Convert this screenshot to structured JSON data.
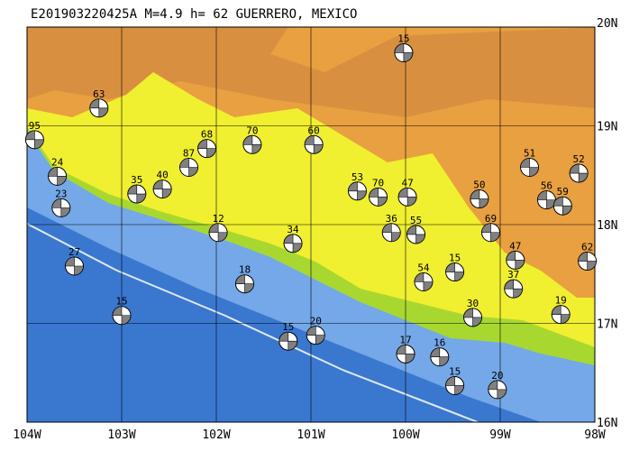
{
  "title": "E201903220425A  M=4.9  h= 62  GUERRERO, MEXICO",
  "lon_ticks": [
    {
      "value": -104,
      "label": "104W"
    },
    {
      "value": -103,
      "label": "103W"
    },
    {
      "value": -102,
      "label": "102W"
    },
    {
      "value": -101,
      "label": "101W"
    },
    {
      "value": -100,
      "label": "100W"
    },
    {
      "value": -99,
      "label": "99W"
    },
    {
      "value": -98,
      "label": "98W"
    }
  ],
  "lat_ticks": [
    {
      "value": 20,
      "label": "20N"
    },
    {
      "value": 19,
      "label": "19N"
    },
    {
      "value": 18,
      "label": "18N"
    },
    {
      "value": 17,
      "label": "17N"
    },
    {
      "value": 16,
      "label": "16N"
    }
  ],
  "lon_range": [
    -104,
    -98
  ],
  "lat_range": [
    16,
    20
  ],
  "events": [
    {
      "depth": 15,
      "lon": -100.02,
      "lat": 19.74
    },
    {
      "depth": 63,
      "lon": -103.24,
      "lat": 19.18
    },
    {
      "depth": 95,
      "lon": -103.92,
      "lat": 18.86
    },
    {
      "depth": 51,
      "lon": -98.69,
      "lat": 18.58
    },
    {
      "depth": 52,
      "lon": -98.17,
      "lat": 18.52
    },
    {
      "depth": 50,
      "lon": -99.22,
      "lat": 18.26
    },
    {
      "depth": 55,
      "lon": -99.89,
      "lat": 17.9
    },
    {
      "depth": 69,
      "lon": -99.1,
      "lat": 17.92
    },
    {
      "depth": 47,
      "lon": -98.84,
      "lat": 17.64
    },
    {
      "depth": 62,
      "lon": -98.08,
      "lat": 17.63
    },
    {
      "depth": 27,
      "lon": -103.5,
      "lat": 17.58
    },
    {
      "depth": 15,
      "lon": -103.0,
      "lat": 17.08
    },
    {
      "depth": 15,
      "lon": -101.24,
      "lat": 16.82
    },
    {
      "depth": 68,
      "lon": -102.1,
      "lat": 18.77
    },
    {
      "depth": 70,
      "lon": -101.62,
      "lat": 18.81
    },
    {
      "depth": 60,
      "lon": -100.97,
      "lat": 18.81
    },
    {
      "depth": 87,
      "lon": -102.29,
      "lat": 18.58
    },
    {
      "depth": 40,
      "lon": -102.57,
      "lat": 18.36
    },
    {
      "depth": 35,
      "lon": -102.84,
      "lat": 18.31
    },
    {
      "depth": 23,
      "lon": -103.64,
      "lat": 18.17
    },
    {
      "depth": 24,
      "lon": -103.68,
      "lat": 18.49
    },
    {
      "depth": 12,
      "lon": -101.98,
      "lat": 17.92
    },
    {
      "depth": 34,
      "lon": -101.19,
      "lat": 17.81
    },
    {
      "depth": 18,
      "lon": -101.7,
      "lat": 17.4
    },
    {
      "depth": 36,
      "lon": -100.15,
      "lat": 17.92
    },
    {
      "depth": 53,
      "lon": -100.51,
      "lat": 18.34
    },
    {
      "depth": 70,
      "lon": -100.29,
      "lat": 18.28
    },
    {
      "depth": 47,
      "lon": -99.98,
      "lat": 18.28
    },
    {
      "depth": 56,
      "lon": -98.51,
      "lat": 18.25
    },
    {
      "depth": 59,
      "lon": -98.34,
      "lat": 18.19
    },
    {
      "depth": 15,
      "lon": -99.48,
      "lat": 17.52
    },
    {
      "depth": 37,
      "lon": -98.86,
      "lat": 17.35
    },
    {
      "depth": 19,
      "lon": -98.36,
      "lat": 17.09
    },
    {
      "depth": 20,
      "lon": -99.03,
      "lat": 16.33
    },
    {
      "depth": 20,
      "lon": -100.95,
      "lat": 16.88
    },
    {
      "depth": 17,
      "lon": -100.0,
      "lat": 16.69
    },
    {
      "depth": 16,
      "lon": -99.64,
      "lat": 16.66
    },
    {
      "depth": 15,
      "lon": -99.48,
      "lat": 16.37
    },
    {
      "depth": 54,
      "lon": -99.81,
      "lat": 17.42
    },
    {
      "depth": 30,
      "lon": -99.29,
      "lat": 17.06
    }
  ]
}
